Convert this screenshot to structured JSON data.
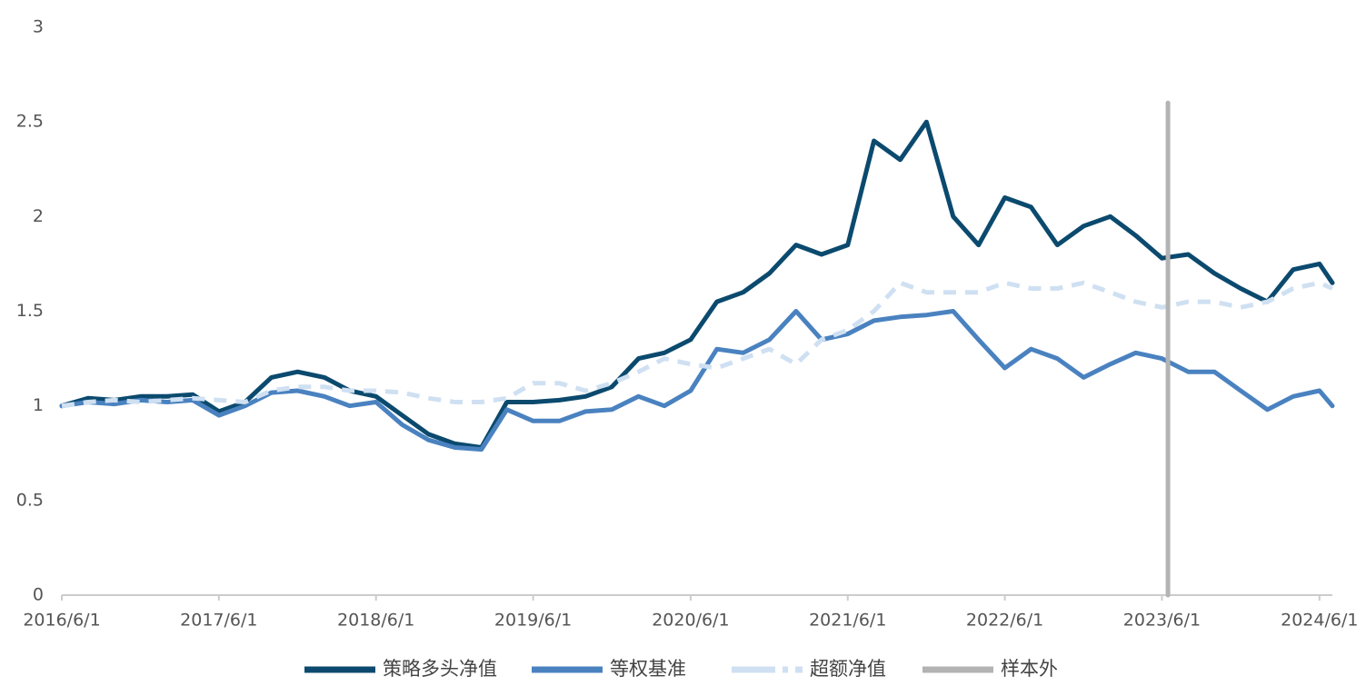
{
  "chart_data": {
    "type": "line",
    "x": [
      "2016/6/1",
      "2016/8/1",
      "2016/10/1",
      "2016/12/1",
      "2017/2/1",
      "2017/4/1",
      "2017/6/1",
      "2017/8/1",
      "2017/10/1",
      "2017/12/1",
      "2018/2/1",
      "2018/4/1",
      "2018/6/1",
      "2018/8/1",
      "2018/10/1",
      "2018/12/1",
      "2019/2/1",
      "2019/4/1",
      "2019/6/1",
      "2019/8/1",
      "2019/10/1",
      "2019/12/1",
      "2020/2/1",
      "2020/4/1",
      "2020/6/1",
      "2020/8/1",
      "2020/10/1",
      "2020/12/1",
      "2021/2/1",
      "2021/4/1",
      "2021/6/1",
      "2021/8/1",
      "2021/10/1",
      "2021/12/1",
      "2022/2/1",
      "2022/4/1",
      "2022/6/1",
      "2022/8/1",
      "2022/10/1",
      "2022/12/1",
      "2023/2/1",
      "2023/4/1",
      "2023/6/1",
      "2023/8/1",
      "2023/10/1",
      "2023/12/1",
      "2024/2/1",
      "2024/4/1",
      "2024/6/1",
      "2024/7/1"
    ],
    "series": [
      {
        "name": "策略多头净值",
        "color": "#0b4a6e",
        "style": "solid",
        "values": [
          1.0,
          1.04,
          1.03,
          1.05,
          1.05,
          1.06,
          0.97,
          1.02,
          1.15,
          1.18,
          1.15,
          1.08,
          1.05,
          0.95,
          0.85,
          0.8,
          0.78,
          1.02,
          1.02,
          1.03,
          1.05,
          1.1,
          1.25,
          1.28,
          1.35,
          1.55,
          1.6,
          1.7,
          1.85,
          1.8,
          1.85,
          2.4,
          2.3,
          2.5,
          2.0,
          1.85,
          2.1,
          2.05,
          1.85,
          1.95,
          2.0,
          1.9,
          1.78,
          1.8,
          1.7,
          1.62,
          1.55,
          1.72,
          1.75,
          1.65
        ]
      },
      {
        "name": "等权基准",
        "color": "#4a82c0",
        "style": "solid",
        "values": [
          1.0,
          1.02,
          1.01,
          1.03,
          1.02,
          1.03,
          0.95,
          1.0,
          1.07,
          1.08,
          1.05,
          1.0,
          1.02,
          0.9,
          0.82,
          0.78,
          0.77,
          0.98,
          0.92,
          0.92,
          0.97,
          0.98,
          1.05,
          1.0,
          1.08,
          1.3,
          1.28,
          1.35,
          1.5,
          1.35,
          1.38,
          1.45,
          1.47,
          1.48,
          1.5,
          1.35,
          1.2,
          1.3,
          1.25,
          1.15,
          1.22,
          1.28,
          1.25,
          1.18,
          1.18,
          1.08,
          0.98,
          1.05,
          1.08,
          1.0
        ]
      },
      {
        "name": "超额净值",
        "color": "#cfe0f2",
        "style": "dashed",
        "values": [
          1.0,
          1.02,
          1.03,
          1.02,
          1.03,
          1.04,
          1.03,
          1.02,
          1.08,
          1.1,
          1.1,
          1.08,
          1.08,
          1.07,
          1.04,
          1.02,
          1.02,
          1.04,
          1.12,
          1.12,
          1.08,
          1.12,
          1.18,
          1.25,
          1.22,
          1.2,
          1.25,
          1.3,
          1.22,
          1.35,
          1.4,
          1.5,
          1.65,
          1.6,
          1.6,
          1.6,
          1.65,
          1.62,
          1.62,
          1.65,
          1.6,
          1.55,
          1.52,
          1.55,
          1.55,
          1.52,
          1.55,
          1.62,
          1.65,
          1.62
        ]
      },
      {
        "name": "样本外",
        "color": "#b3b3b3",
        "style": "solid",
        "x": [
          "2023/6/15",
          "2023/6/15"
        ],
        "values": [
          0,
          2.6
        ]
      }
    ],
    "xlim": [
      "2016/6/1",
      "2024/7/1"
    ],
    "xticks": [
      "2016/6/1",
      "2017/6/1",
      "2018/6/1",
      "2019/6/1",
      "2020/6/1",
      "2021/6/1",
      "2022/6/1",
      "2023/6/1",
      "2024/6/1"
    ],
    "ylim": [
      0,
      3
    ],
    "yticks": [
      0,
      0.5,
      1,
      1.5,
      2,
      2.5,
      3
    ],
    "grid": false,
    "legend": "bottom"
  }
}
